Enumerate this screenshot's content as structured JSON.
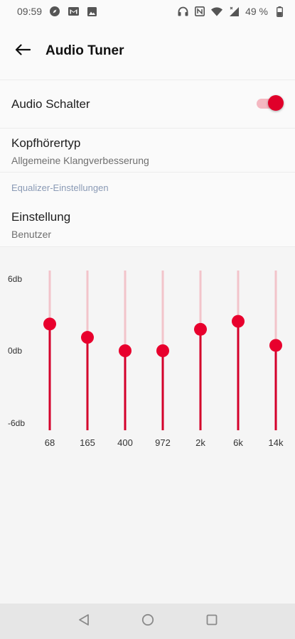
{
  "status_bar": {
    "time": "09:59",
    "battery_text": "49 %",
    "left_icons": [
      "compass-icon",
      "gmail-icon",
      "image-icon"
    ],
    "right_icons": [
      "headphones-icon",
      "nfc-icon",
      "wifi-icon",
      "signal-icon",
      "battery-icon"
    ]
  },
  "app_bar": {
    "title": "Audio Tuner",
    "back_icon": "arrow-left-icon"
  },
  "settings": {
    "audio_switch": {
      "label": "Audio Schalter",
      "enabled": true
    },
    "headphone_type": {
      "title": "Kopfhörertyp",
      "value": "Allgemeine Klangverbesserung"
    },
    "equalizer_section": "Equalizer-Einstellungen",
    "preset": {
      "title": "Einstellung",
      "value": "Benutzer"
    }
  },
  "equalizer": {
    "y_labels": [
      "6db",
      "0db",
      "-6db"
    ],
    "range_db": [
      -6,
      6
    ],
    "bands": [
      {
        "label": "68",
        "db": 2.0
      },
      {
        "label": "165",
        "db": 1.0
      },
      {
        "label": "400",
        "db": 0.0
      },
      {
        "label": "972",
        "db": 0.0
      },
      {
        "label": "2k",
        "db": 1.6
      },
      {
        "label": "6k",
        "db": 2.2
      },
      {
        "label": "14k",
        "db": 0.4
      }
    ],
    "colors": {
      "active": "#d4002a",
      "inactive": "#f2c4ca",
      "thumb": "#e8002d"
    }
  },
  "nav_bar": {
    "buttons": [
      "back-triangle-icon",
      "home-circle-icon",
      "recents-square-icon"
    ]
  }
}
